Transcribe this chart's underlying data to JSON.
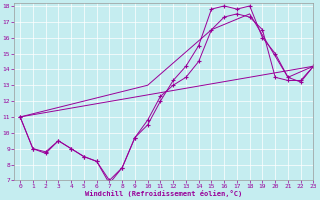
{
  "xlabel": "Windchill (Refroidissement éolien,°C)",
  "bg_color": "#c5edf0",
  "line_color": "#990099",
  "xlim": [
    -0.5,
    23
  ],
  "ylim": [
    7,
    18.2
  ],
  "yticks": [
    7,
    8,
    9,
    10,
    11,
    12,
    13,
    14,
    15,
    16,
    17,
    18
  ],
  "xticks": [
    0,
    1,
    2,
    3,
    4,
    5,
    6,
    7,
    8,
    9,
    10,
    11,
    12,
    13,
    14,
    15,
    16,
    17,
    18,
    19,
    20,
    21,
    22,
    23
  ],
  "lines": [
    {
      "x": [
        0,
        1,
        2,
        3,
        4,
        5,
        6,
        7,
        8,
        9,
        10,
        11,
        12,
        13,
        14,
        15,
        16,
        17,
        18,
        19,
        20,
        21,
        22,
        23
      ],
      "y": [
        11.0,
        9.0,
        8.8,
        9.5,
        9.0,
        8.5,
        8.2,
        6.8,
        7.8,
        9.7,
        10.5,
        12.0,
        13.3,
        14.2,
        15.5,
        17.8,
        18.0,
        17.8,
        18.0,
        16.0,
        15.0,
        13.5,
        13.2,
        14.2
      ],
      "markers": true
    },
    {
      "x": [
        0,
        1,
        2,
        3,
        4,
        5,
        6,
        7,
        8,
        9,
        10,
        11,
        12,
        13,
        14,
        15,
        16,
        17,
        18,
        19,
        20,
        21,
        22,
        23
      ],
      "y": [
        11.0,
        9.0,
        8.7,
        9.5,
        9.0,
        8.5,
        8.2,
        7.0,
        7.8,
        9.7,
        10.8,
        12.3,
        13.0,
        13.5,
        14.5,
        16.5,
        17.3,
        17.5,
        17.3,
        16.5,
        13.5,
        13.3,
        13.3,
        14.2
      ],
      "markers": true
    },
    {
      "x": [
        0,
        23
      ],
      "y": [
        11.0,
        14.2
      ],
      "markers": false
    },
    {
      "x": [
        0,
        10,
        15,
        18,
        21,
        23
      ],
      "y": [
        11.0,
        13.0,
        16.5,
        17.5,
        13.5,
        14.2
      ],
      "markers": false
    }
  ]
}
